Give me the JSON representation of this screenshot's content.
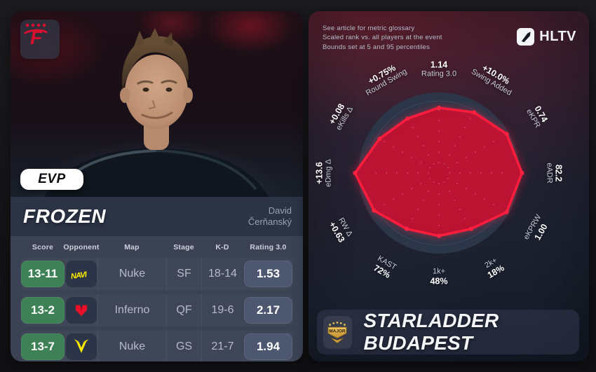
{
  "colors": {
    "accent_red": "#e51230",
    "polygon_stroke": "#ff1c3c",
    "win_green": "#3e8156",
    "card_navy": "#2d3547",
    "table_bg": "#3a4254",
    "rating_badge": "#4d5870",
    "ring_band": "#2b3648",
    "ring_inner": "#1e2737",
    "gold": "#d9a63e"
  },
  "left_card": {
    "team_logo_icon": "faze-clan-logo",
    "evp_badge": "EVP",
    "player_nickname": "FROZEN",
    "player_firstname": "David",
    "player_lastname": "Čerňanský",
    "table": {
      "headers": [
        "Score",
        "Opponent",
        "Map",
        "Stage",
        "K-D",
        "Rating 3.0"
      ],
      "rows": [
        {
          "score": "13-11",
          "opponent_icon": "navi-logo",
          "map": "Nuke",
          "stage": "SF",
          "kd": "18-14",
          "rating": "1.53"
        },
        {
          "score": "13-2",
          "opponent_icon": "mouz-logo",
          "map": "Inferno",
          "stage": "QF",
          "kd": "19-6",
          "rating": "2.17"
        },
        {
          "score": "13-7",
          "opponent_icon": "vitality-logo",
          "map": "Nuke",
          "stage": "GS",
          "kd": "21-7",
          "rating": "1.94"
        }
      ]
    }
  },
  "right_card": {
    "glossary_lines": [
      "See article for metric glossary",
      "Scaled rank vs. all players at the event",
      "Bounds set at 5 and 95 percentiles"
    ],
    "brand": "HLTV",
    "brand_icon": "hltv-logo",
    "event_badge_text": "MAJOR",
    "event_badge_icon": "cs-major-badge",
    "event_name": "STARLADDER BUDAPEST"
  },
  "chart_data": {
    "type": "radar",
    "title": "Scaled rank vs. all players at the event",
    "scale_note": "Bounds set at 5 and 95 percentiles",
    "axes_start_at_top_clockwise": true,
    "axes": [
      {
        "label": "Rating 3.0",
        "value": "1.14",
        "scaled": 0.81,
        "angle": 0
      },
      {
        "label": "Swing Added",
        "value": "+10.0%",
        "scaled": 0.87,
        "angle": 30
      },
      {
        "label": "eKPR",
        "value": "0.74",
        "scaled": 0.97,
        "angle": 60
      },
      {
        "label": "eADR",
        "value": "82.2",
        "scaled": 1.03,
        "angle": 90
      },
      {
        "label": "eKPRW",
        "value": "1.00",
        "scaled": 0.97,
        "angle": 120
      },
      {
        "label": "2k+",
        "value": "18%",
        "scaled": 0.8,
        "angle": 150
      },
      {
        "label": "1k+",
        "value": "48%",
        "scaled": 0.78,
        "angle": 180
      },
      {
        "label": "KAST",
        "value": "72%",
        "scaled": 0.8,
        "angle": 210
      },
      {
        "label": "RW Δ",
        "value": "+0.63",
        "scaled": 0.93,
        "angle": 240
      },
      {
        "label": "eDmg Δ",
        "value": "+13.6",
        "scaled": 1.04,
        "angle": 270
      },
      {
        "label": "eKills Δ",
        "value": "+0.08",
        "scaled": 0.85,
        "angle": 300
      },
      {
        "label": "Round Swing",
        "value": "+0.75%",
        "scaled": 0.78,
        "angle": 330
      }
    ]
  }
}
